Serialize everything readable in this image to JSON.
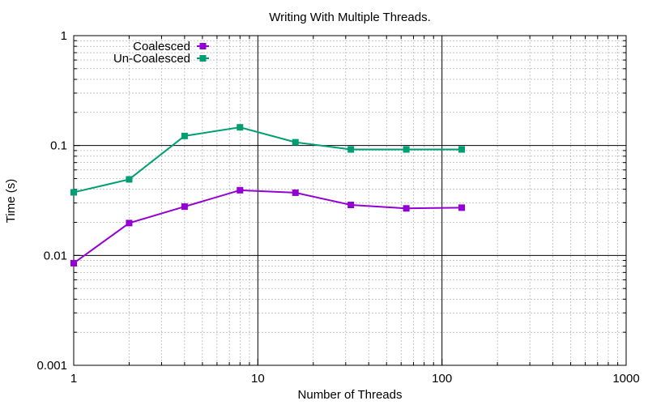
{
  "chart_data": {
    "type": "line",
    "title": "Writing With Multiple Threads.",
    "xlabel": "Number of Threads",
    "ylabel": "Time (s)",
    "xscale": "log",
    "yscale": "log",
    "xlim": [
      1,
      1000
    ],
    "ylim": [
      0.001,
      1
    ],
    "xticks": [
      {
        "value": 1,
        "label": "1"
      },
      {
        "value": 10,
        "label": "10"
      },
      {
        "value": 100,
        "label": "100"
      },
      {
        "value": 1000,
        "label": "1000"
      }
    ],
    "yticks": [
      {
        "value": 0.001,
        "label": "0.001"
      },
      {
        "value": 0.01,
        "label": "0.01"
      },
      {
        "value": 0.1,
        "label": "0.1"
      },
      {
        "value": 1,
        "label": "1"
      }
    ],
    "grid": true,
    "legend_position": "top-left",
    "x": [
      1,
      2,
      4,
      8,
      16,
      32,
      64,
      128
    ],
    "series": [
      {
        "name": "Coalesced",
        "color": "#9400d3",
        "marker": "square",
        "values": [
          0.0085,
          0.0197,
          0.0278,
          0.0392,
          0.0372,
          0.0288,
          0.0268,
          0.0272
        ]
      },
      {
        "name": "Un-Coalesced",
        "color": "#009e73",
        "marker": "square",
        "values": [
          0.0375,
          0.0492,
          0.1222,
          0.1465,
          0.1071,
          0.0921,
          0.0921,
          0.0921
        ]
      }
    ]
  }
}
